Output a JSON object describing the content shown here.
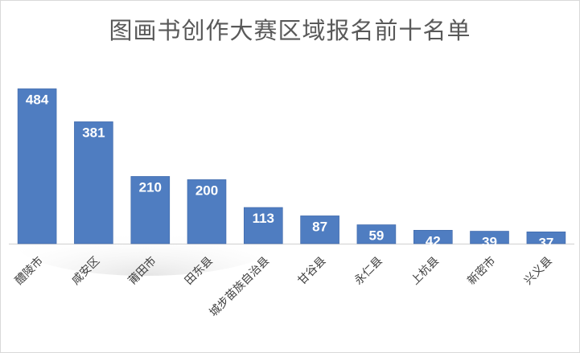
{
  "chart_data": {
    "type": "bar",
    "title": "图画书创作大赛区域报名前十名单",
    "xlabel": "",
    "ylabel": "",
    "categories": [
      "醴陵市",
      "咸安区",
      "莆田市",
      "田东县",
      "城步苗族自治县",
      "甘谷县",
      "永仁县",
      "上杭县",
      "新密市",
      "兴义县"
    ],
    "values": [
      484,
      381,
      210,
      200,
      113,
      87,
      59,
      42,
      39,
      37
    ],
    "ylim": [
      0,
      500
    ],
    "grid": false,
    "legend": "none",
    "data_labels": "inside-top",
    "category_label_rotation": -45,
    "colors": {
      "bar": "#4f7dc1",
      "bar_edge": "#3e67a8",
      "data_label": "#ffffff",
      "title": "#595959",
      "axis_line": "#d0d0d0"
    }
  }
}
